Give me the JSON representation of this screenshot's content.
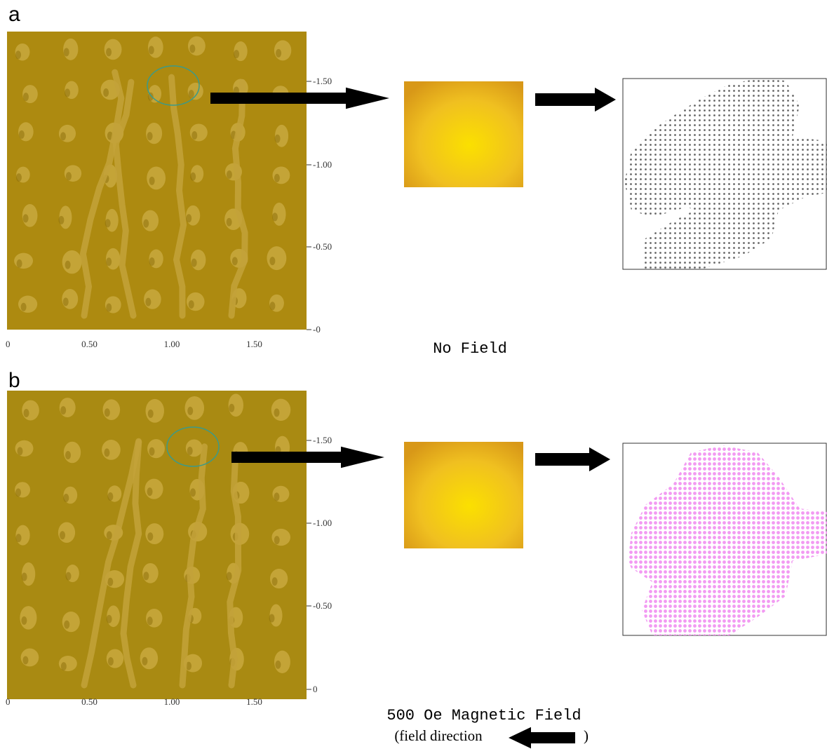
{
  "panels": [
    {
      "label": "a",
      "xticks": [
        "0",
        "0.50",
        "1.00",
        "1.50"
      ],
      "yticks": [
        "-1.50",
        "-1.00",
        "-0.50",
        "-0"
      ],
      "caption": "No  Field"
    },
    {
      "label": "b",
      "xticks": [
        "0",
        "0.50",
        "1.00",
        "1.50"
      ],
      "yticks": [
        "-1.50",
        "-1.00",
        "-0.50",
        "0"
      ],
      "caption": "500 Oe  Magnetic Field",
      "note_open": "(field direction",
      "note_close": ")"
    }
  ]
}
